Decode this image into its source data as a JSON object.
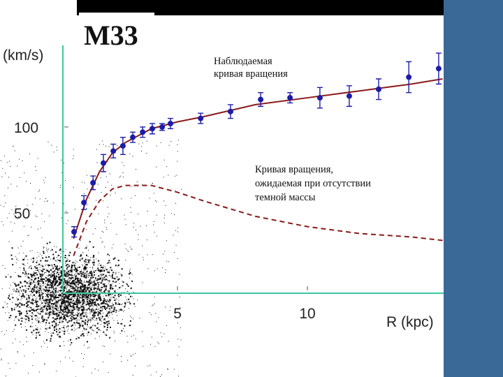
{
  "chart_data": {
    "type": "scatter",
    "title": "M33",
    "x_label": "R (kpc)",
    "y_label": "(km/s)",
    "xlim": [
      0.59,
      15.24
    ],
    "ylim": [
      3.25,
      147.5
    ],
    "xticks": [
      5,
      10
    ],
    "yticks": [
      50,
      100
    ],
    "annotations": [
      {
        "lines": [
          "Наблюдаемая",
          "кривая вращения"
        ]
      },
      {
        "lines": [
          "Кривая вращения,",
          "ожидаемая при отсутствии",
          "темной массы"
        ]
      }
    ],
    "series": [
      {
        "type": "scatter",
        "color": "#1c1ca8",
        "x": [
          1.02,
          1.4,
          1.75,
          2.15,
          2.53,
          2.9,
          3.28,
          3.66,
          4.03,
          4.41,
          4.73,
          5.89,
          7.04,
          8.2,
          9.33,
          10.48,
          11.61,
          12.74,
          13.9,
          15.05
        ],
        "values": [
          39,
          56,
          67.5,
          79,
          86,
          89,
          94,
          97,
          99,
          100,
          102,
          105,
          109,
          116,
          117,
          117,
          118,
          122,
          129,
          134
        ],
        "errors": [
          3,
          4,
          4,
          5,
          4,
          5,
          3,
          3,
          3,
          2,
          3,
          3,
          4,
          4,
          3,
          6,
          6,
          6,
          9,
          9
        ]
      },
      {
        "type": "line",
        "color": "#8b1a1a",
        "dash": false,
        "x": [
          1.0,
          1.5,
          2,
          2.5,
          3,
          4,
          5,
          6,
          8,
          10,
          12,
          14,
          15.2
        ],
        "values": [
          35,
          58,
          74,
          85,
          91,
          99,
          103,
          106,
          113,
          117,
          121,
          125,
          128
        ]
      },
      {
        "type": "line",
        "color": "#8b1a1a",
        "dash": true,
        "x": [
          1.0,
          1.5,
          2,
          2.5,
          3,
          4,
          5,
          6,
          8,
          10,
          12,
          14,
          15.2
        ],
        "values": [
          25,
          45,
          57,
          64,
          66,
          66,
          62,
          57,
          48,
          42,
          38,
          36,
          34
        ]
      }
    ]
  }
}
